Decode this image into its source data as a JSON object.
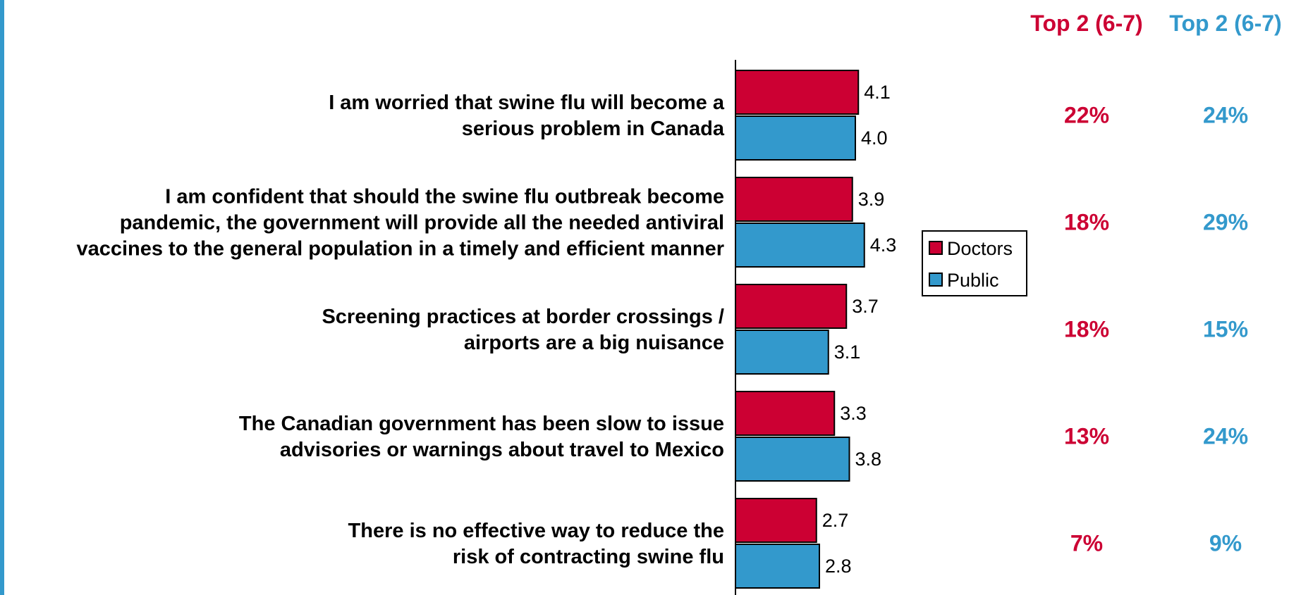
{
  "colors": {
    "doctors": "#cc0033",
    "public": "#3399cc",
    "doctors_text": "#cc0033",
    "public_text": "#3399cc"
  },
  "top2_headers": {
    "doctors": "Top 2 (6-7)",
    "public": "Top 2 (6-7)"
  },
  "legend": {
    "doctors": "Doctors",
    "public": "Public"
  },
  "chart_data": {
    "type": "bar",
    "orientation": "horizontal",
    "categories": [
      [
        "I am worried that swine flu will become a",
        "serious problem in Canada"
      ],
      [
        "I am confident that should the swine flu outbreak become",
        "pandemic, the government will provide all the needed antiviral",
        "vaccines to the general population in a timely and efficient manner"
      ],
      [
        "Screening practices at border crossings /",
        "airports are a big nuisance"
      ],
      [
        "The Canadian government has been slow to issue",
        "advisories or warnings about travel to Mexico"
      ],
      [
        "There is no effective way to reduce the",
        "risk of contracting swine flu"
      ]
    ],
    "series": [
      {
        "name": "Doctors",
        "values": [
          4.1,
          3.9,
          3.7,
          3.3,
          2.7
        ],
        "labels": [
          "4.1",
          "3.9",
          "3.7",
          "3.3",
          "2.7"
        ]
      },
      {
        "name": "Public",
        "values": [
          4.0,
          4.3,
          3.1,
          3.8,
          2.8
        ],
        "labels": [
          "4.0",
          "4.3",
          "3.1",
          "3.8",
          "2.8"
        ]
      }
    ],
    "top2": {
      "doctors": [
        "22%",
        "18%",
        "18%",
        "13%",
        "7%"
      ],
      "public": [
        "24%",
        "29%",
        "15%",
        "24%",
        "9%"
      ]
    },
    "legend_position": "right",
    "grid": false
  }
}
